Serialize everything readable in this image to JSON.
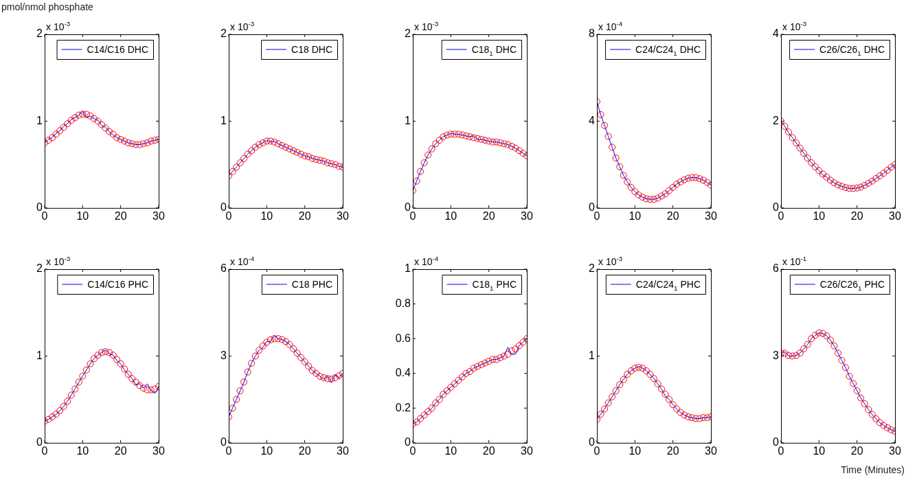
{
  "chart_data": [
    {
      "type": "line",
      "ylabel": "pmol/nmol phosphate",
      "annotations": [
        "x 10$^{-3}$"
      ],
      "x": [
        0,
        1,
        2,
        3,
        4,
        5,
        6,
        7,
        8,
        9,
        10,
        11,
        12,
        13,
        14,
        15,
        16,
        17,
        18,
        19,
        20,
        21,
        22,
        23,
        24,
        25,
        26,
        27,
        28,
        29,
        30
      ],
      "xlim": [
        0,
        30
      ],
      "xticks": [
        0,
        10,
        20,
        30
      ],
      "ylim": [
        0,
        2
      ],
      "yticks": [
        0,
        1,
        2
      ],
      "legend": "top right",
      "series": [
        {
          "name": "C14/C16 DHC",
          "type": "line",
          "color": "#0000ff",
          "values": [
            0.75,
            0.79,
            0.81,
            0.86,
            0.89,
            0.94,
            0.97,
            1.02,
            1.04,
            1.07,
            1.11,
            1.04,
            1.06,
            1.03,
            1.01,
            0.95,
            0.93,
            0.88,
            0.84,
            0.81,
            0.79,
            0.77,
            0.75,
            0.74,
            0.73,
            0.73,
            0.74,
            0.75,
            0.77,
            0.78,
            0.79
          ]
        },
        {
          "type": "scatter",
          "color": "#ff0000",
          "marker": "circle",
          "values": [
            0.75,
            0.78,
            0.81,
            0.85,
            0.89,
            0.93,
            0.97,
            1.01,
            1.04,
            1.07,
            1.08,
            1.08,
            1.06,
            1.03,
            1.0,
            0.96,
            0.92,
            0.88,
            0.85,
            0.81,
            0.79,
            0.77,
            0.75,
            0.74,
            0.73,
            0.73,
            0.74,
            0.75,
            0.77,
            0.78,
            0.79
          ]
        }
      ]
    },
    {
      "type": "line",
      "annotations": [
        "x 10$^{-3}$"
      ],
      "x": [
        0,
        1,
        2,
        3,
        4,
        5,
        6,
        7,
        8,
        9,
        10,
        11,
        12,
        13,
        14,
        15,
        16,
        17,
        18,
        19,
        20,
        21,
        22,
        23,
        24,
        25,
        26,
        27,
        28,
        29,
        30
      ],
      "xlim": [
        0,
        30
      ],
      "xticks": [
        0,
        10,
        20,
        30
      ],
      "ylim": [
        0,
        2
      ],
      "yticks": [
        0,
        1,
        2
      ],
      "legend": "top right",
      "series": [
        {
          "name": "C18 DHC",
          "type": "line",
          "color": "#0000ff",
          "values": [
            0.37,
            0.42,
            0.47,
            0.52,
            0.57,
            0.62,
            0.66,
            0.7,
            0.73,
            0.75,
            0.78,
            0.76,
            0.77,
            0.74,
            0.72,
            0.7,
            0.68,
            0.66,
            0.64,
            0.62,
            0.6,
            0.59,
            0.57,
            0.56,
            0.55,
            0.54,
            0.52,
            0.51,
            0.5,
            0.48,
            0.47
          ]
        },
        {
          "type": "scatter",
          "color": "#ff0000",
          "marker": "circle",
          "values": [
            0.37,
            0.42,
            0.47,
            0.52,
            0.57,
            0.62,
            0.66,
            0.7,
            0.73,
            0.75,
            0.77,
            0.77,
            0.76,
            0.74,
            0.72,
            0.7,
            0.68,
            0.66,
            0.64,
            0.62,
            0.6,
            0.59,
            0.57,
            0.56,
            0.55,
            0.54,
            0.52,
            0.51,
            0.5,
            0.48,
            0.47
          ]
        }
      ]
    },
    {
      "type": "line",
      "annotations": [
        "x 10$^{-3}$"
      ],
      "x": [
        0,
        1,
        2,
        3,
        4,
        5,
        6,
        7,
        8,
        9,
        10,
        11,
        12,
        13,
        14,
        15,
        16,
        17,
        18,
        19,
        20,
        21,
        22,
        23,
        24,
        25,
        26,
        27,
        28,
        29,
        30
      ],
      "xlim": [
        0,
        30
      ],
      "xticks": [
        0,
        10,
        20,
        30
      ],
      "ylim": [
        0,
        2
      ],
      "yticks": [
        0,
        1,
        2
      ],
      "legend": "top right",
      "series": [
        {
          "name": "C18$_{1}$ DHC",
          "type": "line",
          "color": "#0000ff",
          "values": [
            0.2,
            0.31,
            0.42,
            0.52,
            0.61,
            0.68,
            0.74,
            0.78,
            0.82,
            0.84,
            0.86,
            0.85,
            0.85,
            0.84,
            0.83,
            0.82,
            0.83,
            0.79,
            0.79,
            0.78,
            0.77,
            0.76,
            0.76,
            0.75,
            0.74,
            0.73,
            0.71,
            0.69,
            0.66,
            0.63,
            0.6
          ]
        },
        {
          "type": "scatter",
          "color": "#ff0000",
          "marker": "circle",
          "values": [
            0.2,
            0.31,
            0.42,
            0.52,
            0.61,
            0.68,
            0.74,
            0.78,
            0.82,
            0.84,
            0.85,
            0.85,
            0.85,
            0.84,
            0.83,
            0.82,
            0.81,
            0.8,
            0.79,
            0.78,
            0.77,
            0.76,
            0.76,
            0.75,
            0.74,
            0.73,
            0.71,
            0.69,
            0.66,
            0.63,
            0.6
          ]
        }
      ]
    },
    {
      "type": "line",
      "annotations": [
        "x 10$^{-4}$"
      ],
      "x": [
        0,
        1,
        2,
        3,
        4,
        5,
        6,
        7,
        8,
        9,
        10,
        11,
        12,
        13,
        14,
        15,
        16,
        17,
        18,
        19,
        20,
        21,
        22,
        23,
        24,
        25,
        26,
        27,
        28,
        29,
        30
      ],
      "xlim": [
        0,
        30
      ],
      "xticks": [
        0,
        10,
        20,
        30
      ],
      "ylim": [
        0,
        8
      ],
      "yticks": [
        0,
        4,
        8
      ],
      "legend": "top right",
      "series": [
        {
          "name": "C24/C24$_{1}$ DHC",
          "type": "line",
          "color": "#0000ff",
          "values": [
            4.9,
            4.3,
            3.8,
            3.3,
            2.8,
            2.3,
            1.9,
            1.5,
            1.2,
            0.95,
            0.75,
            0.6,
            0.5,
            0.42,
            0.4,
            0.4,
            0.45,
            0.55,
            0.65,
            0.8,
            0.95,
            1.1,
            1.2,
            1.3,
            1.37,
            1.4,
            1.4,
            1.35,
            1.28,
            1.18,
            1.05
          ]
        },
        {
          "type": "scatter",
          "color": "#ff0000",
          "marker": "circle",
          "values": [
            4.9,
            4.3,
            3.8,
            3.3,
            2.8,
            2.3,
            1.9,
            1.5,
            1.2,
            0.95,
            0.75,
            0.6,
            0.5,
            0.42,
            0.4,
            0.4,
            0.45,
            0.55,
            0.65,
            0.8,
            0.95,
            1.1,
            1.2,
            1.3,
            1.37,
            1.4,
            1.4,
            1.35,
            1.28,
            1.18,
            1.05
          ]
        }
      ]
    },
    {
      "type": "line",
      "annotations": [
        "x 10$^{-3}$"
      ],
      "x": [
        0,
        1,
        2,
        3,
        4,
        5,
        6,
        7,
        8,
        9,
        10,
        11,
        12,
        13,
        14,
        15,
        16,
        17,
        18,
        19,
        20,
        21,
        22,
        23,
        24,
        25,
        26,
        27,
        28,
        29,
        30
      ],
      "xlim": [
        0,
        30
      ],
      "xticks": [
        0,
        10,
        20,
        30
      ],
      "ylim": [
        0,
        4
      ],
      "yticks": [
        0,
        2,
        4
      ],
      "legend": "top right",
      "series": [
        {
          "name": "C26/C26$_{1}$ DHC",
          "type": "line",
          "color": "#0000ff",
          "values": [
            2.0,
            1.88,
            1.73,
            1.62,
            1.5,
            1.38,
            1.26,
            1.15,
            1.04,
            0.95,
            0.86,
            0.76,
            0.71,
            0.64,
            0.58,
            0.53,
            0.5,
            0.47,
            0.45,
            0.45,
            0.46,
            0.48,
            0.52,
            0.57,
            0.62,
            0.68,
            0.74,
            0.8,
            0.87,
            0.94,
            1.0
          ]
        },
        {
          "type": "scatter",
          "color": "#ff0000",
          "marker": "circle",
          "values": [
            2.0,
            1.88,
            1.75,
            1.62,
            1.5,
            1.38,
            1.26,
            1.15,
            1.04,
            0.95,
            0.86,
            0.78,
            0.71,
            0.64,
            0.58,
            0.53,
            0.5,
            0.47,
            0.45,
            0.45,
            0.46,
            0.48,
            0.52,
            0.57,
            0.62,
            0.68,
            0.74,
            0.8,
            0.87,
            0.94,
            1.0
          ]
        }
      ]
    },
    {
      "type": "line",
      "annotations": [
        "x 10$^{-3}$"
      ],
      "x": [
        0,
        1,
        2,
        3,
        4,
        5,
        6,
        7,
        8,
        9,
        10,
        11,
        12,
        13,
        14,
        15,
        16,
        17,
        18,
        19,
        20,
        21,
        22,
        23,
        24,
        25,
        26,
        27,
        28,
        29,
        30
      ],
      "xlim": [
        0,
        30
      ],
      "xticks": [
        0,
        10,
        20,
        30
      ],
      "ylim": [
        0,
        2
      ],
      "yticks": [
        0,
        1,
        2
      ],
      "legend": "top right",
      "series": [
        {
          "name": "C14/C16 PHC",
          "type": "line",
          "color": "#0000ff",
          "values": [
            0.25,
            0.27,
            0.3,
            0.33,
            0.37,
            0.42,
            0.48,
            0.55,
            0.62,
            0.7,
            0.77,
            0.84,
            0.91,
            0.97,
            1.01,
            1.04,
            1.07,
            1.03,
            1.01,
            0.95,
            0.91,
            0.84,
            0.79,
            0.74,
            0.67,
            0.68,
            0.63,
            0.68,
            0.6,
            0.57,
            0.65
          ]
        },
        {
          "type": "scatter",
          "color": "#ff0000",
          "marker": "circle",
          "values": [
            0.25,
            0.27,
            0.3,
            0.33,
            0.37,
            0.42,
            0.48,
            0.55,
            0.62,
            0.7,
            0.77,
            0.84,
            0.91,
            0.97,
            1.01,
            1.04,
            1.05,
            1.04,
            1.01,
            0.96,
            0.91,
            0.85,
            0.79,
            0.74,
            0.7,
            0.66,
            0.63,
            0.61,
            0.61,
            0.62,
            0.65
          ]
        }
      ]
    },
    {
      "type": "line",
      "annotations": [
        "x 10$^{-4}$"
      ],
      "x": [
        0,
        1,
        2,
        3,
        4,
        5,
        6,
        7,
        8,
        9,
        10,
        11,
        12,
        13,
        14,
        15,
        16,
        17,
        18,
        19,
        20,
        21,
        22,
        23,
        24,
        25,
        26,
        27,
        28,
        29,
        30
      ],
      "xlim": [
        0,
        30
      ],
      "xticks": [
        0,
        10,
        20,
        30
      ],
      "ylim": [
        0,
        6
      ],
      "yticks": [
        0,
        3,
        6
      ],
      "legend": "top right",
      "series": [
        {
          "name": "C18 PHC",
          "type": "line",
          "color": "#0000ff",
          "values": [
            0.9,
            1.2,
            1.5,
            1.8,
            2.1,
            2.45,
            2.75,
            3.0,
            3.2,
            3.3,
            3.5,
            3.5,
            3.7,
            3.6,
            3.57,
            3.5,
            3.4,
            3.25,
            3.1,
            2.95,
            2.8,
            2.65,
            2.5,
            2.4,
            2.3,
            2.2,
            2.3,
            2.1,
            2.35,
            2.25,
            2.4
          ]
        },
        {
          "type": "scatter",
          "color": "#ff0000",
          "marker": "circle",
          "values": [
            0.9,
            1.2,
            1.5,
            1.8,
            2.1,
            2.45,
            2.75,
            3.0,
            3.2,
            3.35,
            3.48,
            3.56,
            3.6,
            3.6,
            3.57,
            3.5,
            3.4,
            3.25,
            3.1,
            2.95,
            2.8,
            2.65,
            2.5,
            2.4,
            2.3,
            2.25,
            2.22,
            2.2,
            2.25,
            2.32,
            2.4
          ]
        }
      ]
    },
    {
      "type": "line",
      "annotations": [
        "x 10$^{-4}$"
      ],
      "x": [
        0,
        1,
        2,
        3,
        4,
        5,
        6,
        7,
        8,
        9,
        10,
        11,
        12,
        13,
        14,
        15,
        16,
        17,
        18,
        19,
        20,
        21,
        22,
        23,
        24,
        25,
        26,
        27,
        28,
        29,
        30
      ],
      "xlim": [
        0,
        30
      ],
      "xticks": [
        0,
        10,
        20,
        30
      ],
      "ylim": [
        0,
        1
      ],
      "yticks": [
        0,
        0.2,
        0.4,
        0.6,
        0.8,
        1
      ],
      "legend": "top right",
      "series": [
        {
          "name": "C18$_{1}$ PHC",
          "type": "line",
          "color": "#0000ff",
          "values": [
            0.11,
            0.12,
            0.14,
            0.16,
            0.18,
            0.2,
            0.23,
            0.25,
            0.28,
            0.3,
            0.32,
            0.34,
            0.36,
            0.38,
            0.4,
            0.41,
            0.43,
            0.44,
            0.45,
            0.46,
            0.47,
            0.48,
            0.48,
            0.49,
            0.5,
            0.55,
            0.51,
            0.51,
            0.56,
            0.58,
            0.6
          ]
        },
        {
          "type": "scatter",
          "color": "#ff0000",
          "marker": "circle",
          "values": [
            0.11,
            0.12,
            0.14,
            0.16,
            0.18,
            0.2,
            0.23,
            0.25,
            0.28,
            0.3,
            0.32,
            0.34,
            0.36,
            0.38,
            0.4,
            0.41,
            0.43,
            0.44,
            0.45,
            0.46,
            0.47,
            0.48,
            0.48,
            0.49,
            0.5,
            0.51,
            0.53,
            0.54,
            0.56,
            0.58,
            0.6
          ]
        }
      ]
    },
    {
      "type": "line",
      "annotations": [
        "x 10$^{-3}$"
      ],
      "x": [
        0,
        1,
        2,
        3,
        4,
        5,
        6,
        7,
        8,
        9,
        10,
        11,
        12,
        13,
        14,
        15,
        16,
        17,
        18,
        19,
        20,
        21,
        22,
        23,
        24,
        25,
        26,
        27,
        28,
        29,
        30
      ],
      "xlim": [
        0,
        30
      ],
      "xticks": [
        0,
        10,
        20,
        30
      ],
      "ylim": [
        0,
        2
      ],
      "yticks": [
        0,
        1,
        2
      ],
      "legend": "top right",
      "series": [
        {
          "name": "C24/C24$_{1}$ PHC",
          "type": "line",
          "color": "#0000ff",
          "values": [
            0.27,
            0.33,
            0.39,
            0.46,
            0.53,
            0.6,
            0.67,
            0.73,
            0.79,
            0.83,
            0.86,
            0.88,
            0.86,
            0.83,
            0.79,
            0.74,
            0.68,
            0.62,
            0.54,
            0.5,
            0.44,
            0.39,
            0.35,
            0.32,
            0.3,
            0.29,
            0.28,
            0.28,
            0.29,
            0.29,
            0.3
          ]
        },
        {
          "type": "scatter",
          "color": "#ff0000",
          "marker": "circle",
          "values": [
            0.27,
            0.33,
            0.39,
            0.46,
            0.53,
            0.6,
            0.67,
            0.73,
            0.79,
            0.83,
            0.86,
            0.87,
            0.86,
            0.83,
            0.79,
            0.74,
            0.68,
            0.62,
            0.56,
            0.5,
            0.44,
            0.39,
            0.35,
            0.32,
            0.3,
            0.29,
            0.28,
            0.28,
            0.29,
            0.29,
            0.3
          ]
        }
      ]
    },
    {
      "type": "line",
      "xlabel": "Time (Minutes)",
      "annotations": [
        "x 10$^{-1}$"
      ],
      "x": [
        0,
        1,
        2,
        3,
        4,
        5,
        6,
        7,
        8,
        9,
        10,
        11,
        12,
        13,
        14,
        15,
        16,
        17,
        18,
        19,
        20,
        21,
        22,
        23,
        24,
        25,
        26,
        27,
        28,
        29,
        30
      ],
      "xlim": [
        0,
        30
      ],
      "xticks": [
        0,
        10,
        20,
        30
      ],
      "ylim": [
        0,
        6
      ],
      "yticks": [
        0,
        3,
        6
      ],
      "legend": "top right",
      "series": [
        {
          "name": "C26/C26$_{1}$ PHC",
          "type": "line",
          "color": "#0000ff",
          "values": [
            3.1,
            3.15,
            3.0,
            3.0,
            3.02,
            3.1,
            3.25,
            3.4,
            3.6,
            3.72,
            3.8,
            3.78,
            3.7,
            3.55,
            3.35,
            3.1,
            2.85,
            2.6,
            2.3,
            2.05,
            1.8,
            1.55,
            1.35,
            1.15,
            0.98,
            0.83,
            0.7,
            0.6,
            0.52,
            0.45,
            0.4
          ]
        },
        {
          "type": "scatter",
          "color": "#ff0000",
          "marker": "circle",
          "values": [
            3.1,
            3.1,
            3.02,
            3.0,
            3.02,
            3.1,
            3.25,
            3.4,
            3.6,
            3.72,
            3.8,
            3.78,
            3.7,
            3.55,
            3.35,
            3.1,
            2.85,
            2.6,
            2.3,
            2.05,
            1.8,
            1.55,
            1.35,
            1.15,
            0.98,
            0.83,
            0.7,
            0.6,
            0.52,
            0.45,
            0.4
          ]
        }
      ]
    }
  ]
}
